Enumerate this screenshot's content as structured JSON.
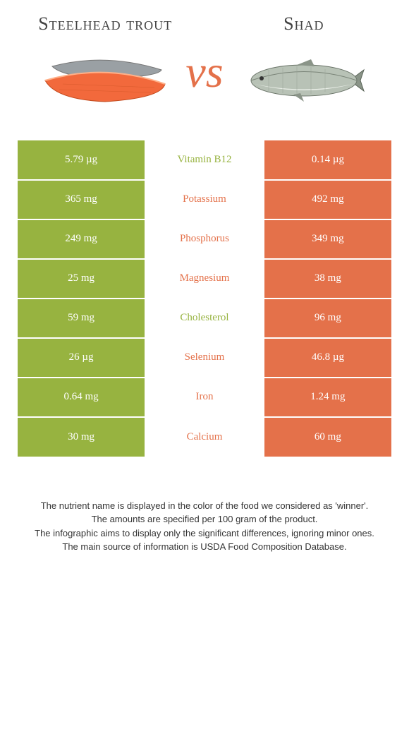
{
  "food_left": {
    "title": "Steelhead trout"
  },
  "food_right": {
    "title": "Shad"
  },
  "vs_label": "vs",
  "colors": {
    "left_bg": "#97b340",
    "right_bg": "#e4714a",
    "left_text": "#97b340",
    "right_text": "#e4714a"
  },
  "rows": [
    {
      "left": "5.79 µg",
      "label": "Vitamin B12",
      "right": "0.14 µg",
      "winner": "left"
    },
    {
      "left": "365 mg",
      "label": "Potassium",
      "right": "492 mg",
      "winner": "right"
    },
    {
      "left": "249 mg",
      "label": "Phosphorus",
      "right": "349 mg",
      "winner": "right"
    },
    {
      "left": "25 mg",
      "label": "Magnesium",
      "right": "38 mg",
      "winner": "right"
    },
    {
      "left": "59 mg",
      "label": "Cholesterol",
      "right": "96 mg",
      "winner": "left"
    },
    {
      "left": "26 µg",
      "label": "Selenium",
      "right": "46.8 µg",
      "winner": "right"
    },
    {
      "left": "0.64 mg",
      "label": "Iron",
      "right": "1.24 mg",
      "winner": "right"
    },
    {
      "left": "30 mg",
      "label": "Calcium",
      "right": "60 mg",
      "winner": "right"
    }
  ],
  "footer": {
    "line1": "The nutrient name is displayed in the color of the food we considered as 'winner'.",
    "line2": "The amounts are specified per 100 gram of the product.",
    "line3": "The infographic aims to display only the significant differences, ignoring minor ones.",
    "line4": "The main source of information is USDA Food Composition Database."
  }
}
